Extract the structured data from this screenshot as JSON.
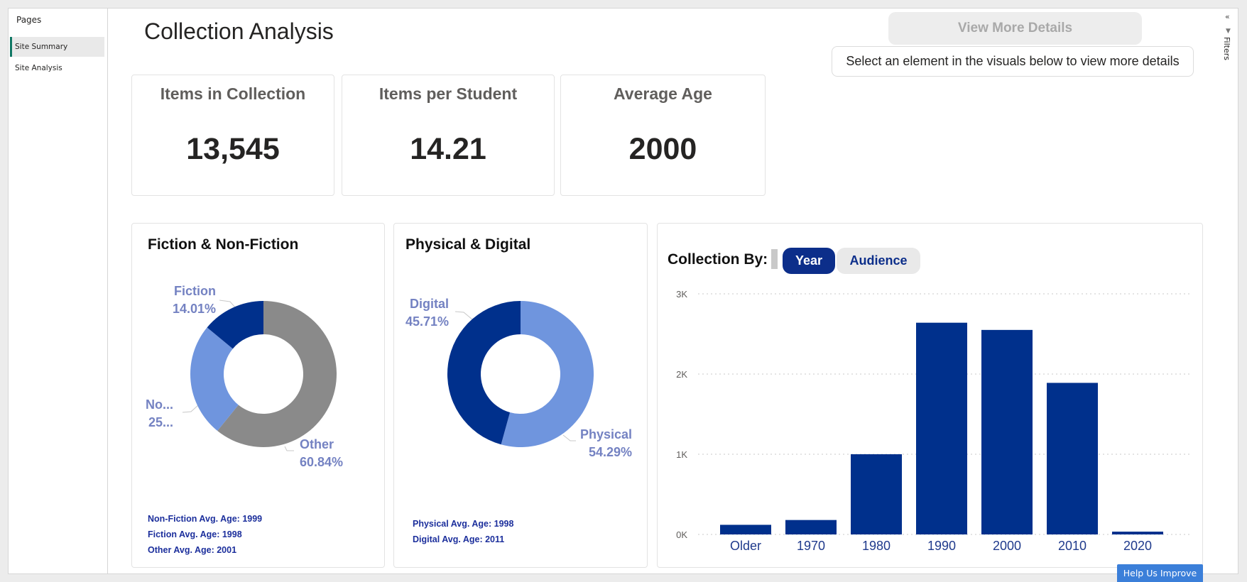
{
  "pages_pane": {
    "title": "Pages",
    "items": [
      {
        "label": "Site Summary"
      },
      {
        "label": "Site Analysis"
      }
    ]
  },
  "filters": {
    "label": "Filters",
    "chevron": "«",
    "funnel": "▼"
  },
  "header": {
    "title": "Collection Analysis",
    "view_more_label": "View More Details",
    "hint": "Select an element in the visuals below to view more details"
  },
  "kpis": [
    {
      "label": "Items in Collection",
      "value": "13,545"
    },
    {
      "label": "Items per Student",
      "value": "14.21"
    },
    {
      "label": "Average Age",
      "value": "2000"
    }
  ],
  "fiction_visual": {
    "title": "Fiction & Non-Fiction",
    "labels": {
      "fiction_name": "Fiction",
      "fiction_pct": "14.01%",
      "nonfiction_name": "No...",
      "nonfiction_pct": "25...",
      "other_name": "Other",
      "other_pct": "60.84%"
    },
    "avg_lines": [
      "Non-Fiction Avg. Age: 1999",
      "Fiction Avg. Age: 1998",
      "Other Avg. Age: 2001"
    ]
  },
  "physical_visual": {
    "title": "Physical & Digital",
    "labels": {
      "digital_name": "Digital",
      "digital_pct": "45.71%",
      "physical_name": "Physical",
      "physical_pct": "54.29%"
    },
    "avg_lines": [
      "Physical Avg. Age: 1998",
      "Digital Avg. Age: 2011"
    ]
  },
  "collection_visual": {
    "title": "Collection By:",
    "toggles": {
      "year": "Year",
      "audience": "Audience"
    },
    "selected": "Year"
  },
  "colors": {
    "dark_blue": "#00308c",
    "light_blue": "#6f95de",
    "gray": "#8a8a8a",
    "label": "#7482c2"
  },
  "chart_data": [
    {
      "type": "pie",
      "title": "Fiction & Non-Fiction",
      "categories": [
        "Other",
        "Non-Fiction",
        "Fiction"
      ],
      "values": [
        60.84,
        25.15,
        14.01
      ],
      "colors": [
        "#8a8a8a",
        "#6f95de",
        "#00308c"
      ]
    },
    {
      "type": "pie",
      "title": "Physical & Digital",
      "categories": [
        "Physical",
        "Digital"
      ],
      "values": [
        54.29,
        45.71
      ],
      "colors": [
        "#6f95de",
        "#00308c"
      ]
    },
    {
      "type": "bar",
      "title": "Collection By:",
      "categories": [
        "Older",
        "1970",
        "1980",
        "1990",
        "2000",
        "2010",
        "2020"
      ],
      "values": [
        120,
        180,
        1000,
        2640,
        2550,
        1890,
        35
      ],
      "ylim": [
        0,
        3000
      ],
      "yticks": [
        0,
        1000,
        2000,
        3000
      ],
      "ytick_labels": [
        "0K",
        "1K",
        "2K",
        "3K"
      ],
      "grid": true,
      "color": "#00308c"
    }
  ],
  "help": {
    "label": "Help Us Improve"
  }
}
